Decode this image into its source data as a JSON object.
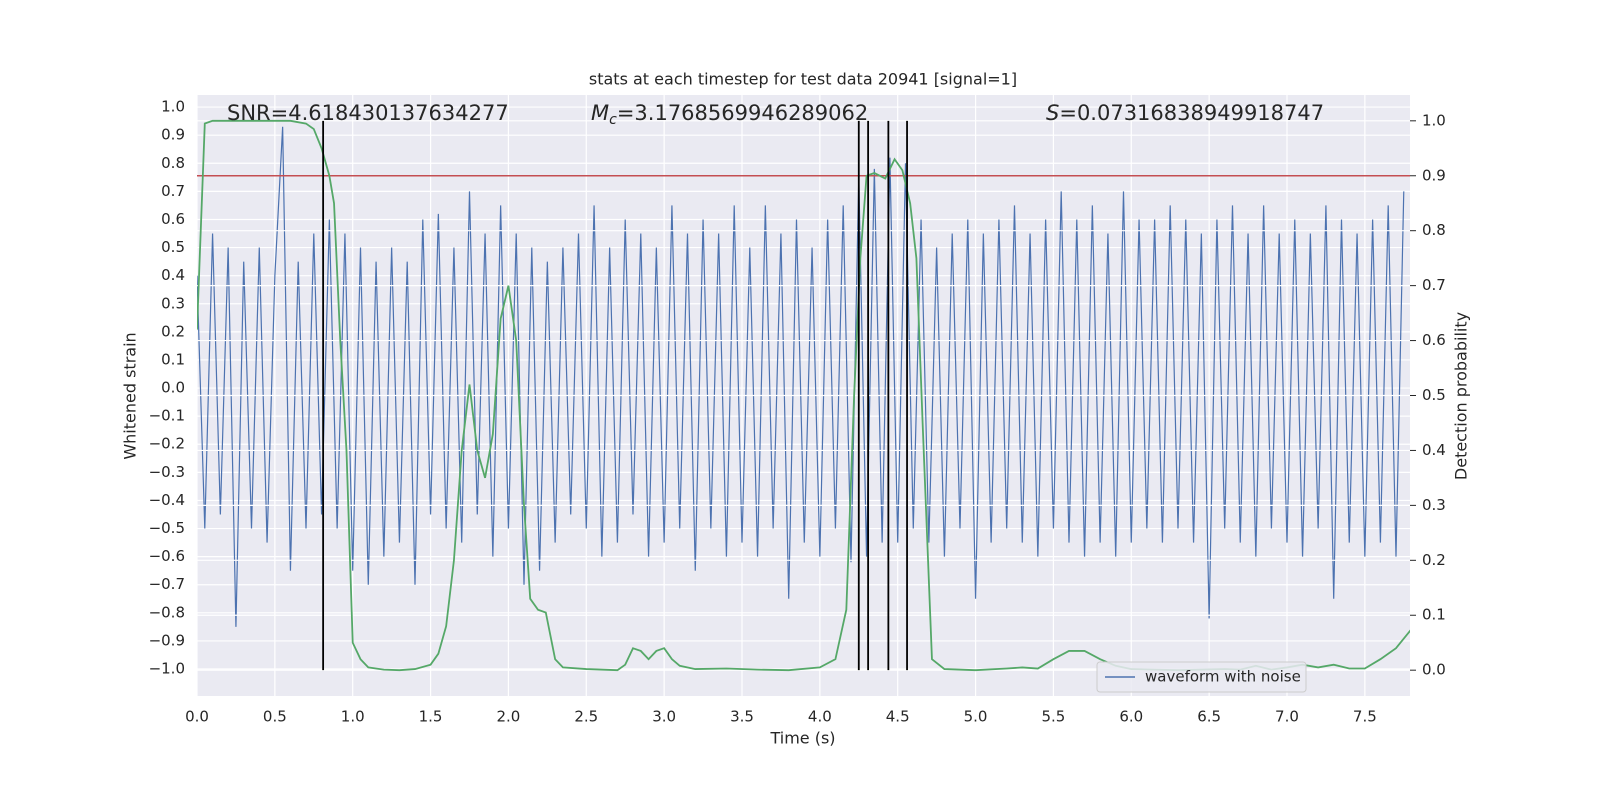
{
  "chart_data": {
    "type": "line",
    "title": "stats at each timestep for test data 20941 [signal=1]",
    "x_label": "Time (s)",
    "y_label": "Whitened strain",
    "y2_label": "Detection probability",
    "xlim": [
      0,
      7.79
    ],
    "ylim": [
      -1.096,
      1.043
    ],
    "y2lim": [
      -0.047,
      1.047
    ],
    "xticks": [
      {
        "value": 0,
        "label": "0.0"
      },
      0.5,
      {
        "value": 1,
        "label": "1.0"
      },
      1.5,
      {
        "value": 2,
        "label": "2.0"
      },
      2.5,
      {
        "value": 3,
        "label": "3.0"
      },
      3.5,
      {
        "value": 4,
        "label": "4.0"
      },
      4.5,
      {
        "value": 5,
        "label": "5.0"
      },
      5.5,
      {
        "value": 6,
        "label": "6.0"
      },
      6.5,
      {
        "value": 7,
        "label": "7.0"
      },
      7.5
    ],
    "yticks": [
      {
        "value": -1,
        "label": "−1.0"
      },
      {
        "value": -0.9,
        "label": "−0.9"
      },
      {
        "value": -0.8,
        "label": "−0.8"
      },
      {
        "value": -0.7,
        "label": "−0.7"
      },
      {
        "value": -0.6,
        "label": "−0.6"
      },
      {
        "value": -0.5,
        "label": "−0.5"
      },
      {
        "value": -0.4,
        "label": "−0.4"
      },
      {
        "value": -0.3,
        "label": "−0.3"
      },
      {
        "value": -0.2,
        "label": "−0.2"
      },
      {
        "value": -0.1,
        "label": "−0.1"
      },
      {
        "value": 0,
        "label": "0.0"
      },
      0.1,
      0.2,
      0.3,
      0.4,
      0.5,
      0.6,
      0.7,
      0.8,
      0.9,
      {
        "value": 1,
        "label": "1.0"
      }
    ],
    "y2ticks": [
      {
        "value": 0,
        "label": "0.0"
      },
      0.1,
      0.2,
      0.3,
      0.4,
      0.5,
      0.6,
      0.7,
      0.8,
      0.9,
      {
        "value": 1,
        "label": "1.0"
      }
    ],
    "grid": true,
    "legend": "lower right",
    "series": [
      {
        "name": "waveform with noise",
        "color": "#4c72b0",
        "x": [
          0,
          0.05,
          0.1,
          0.15,
          0.2,
          0.25,
          0.3,
          0.35,
          0.4,
          0.45,
          0.5,
          0.55,
          0.6,
          0.65,
          0.7,
          0.75,
          0.8,
          0.85,
          0.9,
          0.95,
          1,
          1.05,
          1.1,
          1.15,
          1.2,
          1.25,
          1.3,
          1.35,
          1.4,
          1.45,
          1.5,
          1.55,
          1.6,
          1.65,
          1.7,
          1.75,
          1.8,
          1.85,
          1.9,
          1.95,
          2,
          2.05,
          2.1,
          2.15,
          2.2,
          2.25,
          2.3,
          2.35,
          2.4,
          2.45,
          2.5,
          2.55,
          2.6,
          2.65,
          2.7,
          2.75,
          2.8,
          2.85,
          2.9,
          2.95,
          3,
          3.05,
          3.1,
          3.15,
          3.2,
          3.25,
          3.3,
          3.35,
          3.4,
          3.45,
          3.5,
          3.55,
          3.6,
          3.65,
          3.7,
          3.75,
          3.8,
          3.85,
          3.9,
          3.95,
          4,
          4.05,
          4.1,
          4.15,
          4.2,
          4.25,
          4.3,
          4.35,
          4.4,
          4.45,
          4.5,
          4.55,
          4.6,
          4.65,
          4.7,
          4.75,
          4.8,
          4.85,
          4.9,
          4.95,
          5,
          5.05,
          5.1,
          5.15,
          5.2,
          5.25,
          5.3,
          5.35,
          5.4,
          5.45,
          5.5,
          5.55,
          5.6,
          5.65,
          5.7,
          5.75,
          5.8,
          5.85,
          5.9,
          5.95,
          6,
          6.05,
          6.1,
          6.15,
          6.2,
          6.25,
          6.3,
          6.35,
          6.4,
          6.45,
          6.5,
          6.55,
          6.6,
          6.65,
          6.7,
          6.75,
          6.8,
          6.85,
          6.9,
          6.95,
          7,
          7.05,
          7.1,
          7.15,
          7.2,
          7.25,
          7.3,
          7.35,
          7.4,
          7.45,
          7.5,
          7.55,
          7.6,
          7.65,
          7.7,
          7.75
        ],
        "values": [
          0.4,
          -0.5,
          0.55,
          -0.45,
          0.5,
          -0.85,
          0.45,
          -0.5,
          0.5,
          -0.55,
          0.4,
          0.93,
          -0.65,
          0.45,
          -0.5,
          0.55,
          -0.45,
          0.6,
          -0.5,
          0.55,
          -0.65,
          0.5,
          -0.7,
          0.45,
          -0.6,
          0.5,
          -0.55,
          0.45,
          -0.7,
          0.6,
          -0.45,
          0.62,
          -0.5,
          0.5,
          -0.55,
          0.7,
          -0.45,
          0.55,
          -0.6,
          0.65,
          -0.5,
          0.55,
          -0.7,
          0.5,
          -0.65,
          0.45,
          -0.55,
          0.5,
          -0.45,
          0.55,
          -0.5,
          0.65,
          -0.6,
          0.5,
          -0.55,
          0.6,
          -0.45,
          0.55,
          -0.6,
          0.5,
          -0.55,
          0.65,
          -0.5,
          0.55,
          -0.65,
          0.6,
          -0.5,
          0.55,
          -0.6,
          0.65,
          -0.55,
          0.5,
          -0.6,
          0.65,
          -0.5,
          0.55,
          -0.75,
          0.6,
          -0.55,
          0.5,
          -0.6,
          0.6,
          -0.5,
          0.65,
          -0.62,
          0.75,
          -0.6,
          0.78,
          -0.55,
          0.82,
          -0.55,
          0.8,
          -0.5,
          0.6,
          -0.55,
          0.5,
          -0.6,
          0.55,
          -0.5,
          0.6,
          -0.75,
          0.55,
          -0.55,
          0.6,
          -0.5,
          0.65,
          -0.55,
          0.55,
          -0.6,
          0.6,
          -0.5,
          0.7,
          -0.55,
          0.6,
          -0.6,
          0.65,
          -0.55,
          0.55,
          -0.6,
          0.7,
          -0.55,
          0.6,
          -0.5,
          0.6,
          -0.55,
          0.65,
          -0.5,
          0.6,
          -0.55,
          0.55,
          -0.82,
          0.6,
          -0.5,
          0.65,
          -0.55,
          0.55,
          -0.6,
          0.65,
          -0.5,
          0.55,
          -0.55,
          0.6,
          -0.6,
          0.55,
          -0.5,
          0.65,
          -0.75,
          0.6,
          -0.55,
          0.55,
          -0.6,
          0.6,
          -0.55,
          0.65,
          -0.6,
          0.7
        ]
      },
      {
        "color": "#55a868",
        "axis": "y2",
        "x": [
          0,
          0.05,
          0.1,
          0.2,
          0.3,
          0.4,
          0.5,
          0.6,
          0.7,
          0.75,
          0.8,
          0.85,
          0.88,
          0.92,
          0.96,
          1,
          1.05,
          1.1,
          1.2,
          1.3,
          1.4,
          1.5,
          1.55,
          1.6,
          1.65,
          1.7,
          1.75,
          1.8,
          1.85,
          1.9,
          1.95,
          2,
          2.05,
          2.1,
          2.14,
          2.19,
          2.24,
          2.3,
          2.35,
          2.5,
          2.7,
          2.75,
          2.8,
          2.85,
          2.9,
          2.95,
          3,
          3.05,
          3.1,
          3.2,
          3.4,
          3.6,
          3.8,
          4,
          4.1,
          4.17,
          4.22,
          4.26,
          4.3,
          4.35,
          4.42,
          4.48,
          4.53,
          4.58,
          4.62,
          4.66,
          4.72,
          4.8,
          5,
          5.2,
          5.3,
          5.4,
          5.5,
          5.6,
          5.7,
          5.8,
          5.9,
          6,
          6.3,
          6.6,
          6.7,
          6.8,
          6.9,
          7,
          7.1,
          7.2,
          7.3,
          7.4,
          7.5,
          7.6,
          7.7,
          7.8,
          7.85,
          7.92
        ],
        "values": [
          0.62,
          0.995,
          1,
          1,
          1,
          1,
          1,
          1,
          0.995,
          0.985,
          0.95,
          0.9,
          0.85,
          0.6,
          0.4,
          0.05,
          0.02,
          0.005,
          0.001,
          0,
          0.002,
          0.01,
          0.03,
          0.08,
          0.2,
          0.4,
          0.52,
          0.4,
          0.35,
          0.43,
          0.64,
          0.7,
          0.6,
          0.3,
          0.13,
          0.11,
          0.105,
          0.02,
          0.005,
          0.002,
          0,
          0.01,
          0.04,
          0.035,
          0.02,
          0.035,
          0.04,
          0.02,
          0.008,
          0.002,
          0.003,
          0.001,
          0,
          0.005,
          0.02,
          0.11,
          0.5,
          0.75,
          0.9,
          0.905,
          0.895,
          0.93,
          0.91,
          0.85,
          0.75,
          0.45,
          0.02,
          0.002,
          0,
          0.003,
          0.005,
          0.003,
          0.02,
          0.035,
          0.035,
          0.02,
          0.008,
          0.002,
          0,
          0.002,
          0.001,
          0.008,
          0.001,
          0.005,
          0.01,
          0.005,
          0.01,
          0.003,
          0.003,
          0.02,
          0.04,
          0.075,
          0.04,
          0.015
        ]
      }
    ],
    "threshold": 0.9,
    "threshold_color": "#c44e52",
    "detections": [
      0.81,
      4.25,
      4.31,
      4.44,
      4.56
    ],
    "detection_color": "#000000",
    "annotations": {
      "snr": "SNR=4.618430137634277",
      "mc": {
        "symbol": "M",
        "subscript": "c",
        "text": "=3.1768569946289062"
      },
      "s": {
        "symbol": "S",
        "text": "=0.07316838949918747"
      }
    }
  }
}
